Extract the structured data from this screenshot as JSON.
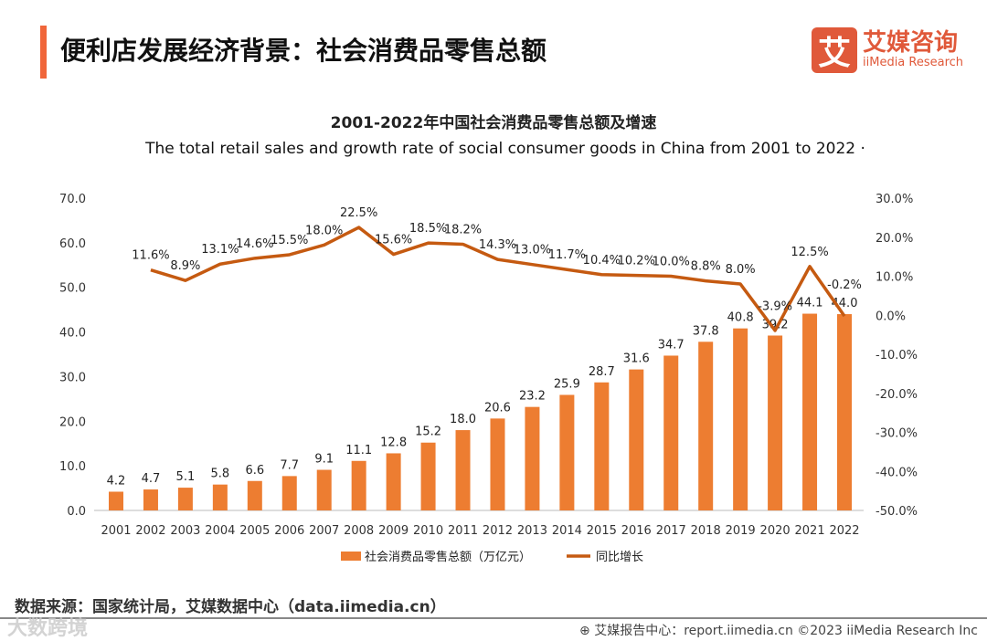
{
  "header": {
    "title": "便利店发展经济背景：社会消费品零售总额",
    "logo_glyph": "艾",
    "logo_cn": "艾媒咨询",
    "logo_en": "iiMedia Research"
  },
  "chart_data": {
    "type": "bar+line",
    "title": "2001-2022年中国社会消费品零售总额及增速",
    "subtitle": "The total retail sales and growth rate of social consumer goods  in China from 2001 to 2022 ·",
    "categories": [
      "2001",
      "2002",
      "2003",
      "2004",
      "2005",
      "2006",
      "2007",
      "2008",
      "2009",
      "2010",
      "2011",
      "2012",
      "2013",
      "2014",
      "2015",
      "2016",
      "2017",
      "2018",
      "2019",
      "2020",
      "2021",
      "2022"
    ],
    "series": [
      {
        "name": "社会消费品零售总额（万亿元）",
        "type": "bar",
        "axis": "left",
        "color": "#ed7d31",
        "values": [
          4.2,
          4.7,
          5.1,
          5.8,
          6.6,
          7.7,
          9.1,
          11.1,
          12.8,
          15.2,
          18.0,
          20.6,
          23.2,
          25.9,
          28.7,
          31.6,
          34.7,
          37.8,
          40.8,
          39.2,
          44.1,
          44.0
        ]
      },
      {
        "name": "同比增长",
        "type": "line",
        "axis": "right",
        "color": "#c55a11",
        "values": [
          null,
          11.6,
          8.9,
          13.1,
          14.6,
          15.5,
          18.0,
          22.5,
          15.6,
          18.5,
          18.2,
          14.3,
          13.0,
          11.7,
          10.4,
          10.2,
          10.0,
          8.8,
          8.0,
          -3.9,
          12.5,
          -0.2
        ]
      }
    ],
    "ylim_left": [
      0,
      70
    ],
    "yticks_left": [
      "0.0",
      "10.0",
      "20.0",
      "30.0",
      "40.0",
      "50.0",
      "60.0",
      "70.0"
    ],
    "ylim_right": [
      -50,
      30
    ],
    "yticks_right": [
      "-50.0%",
      "-40.0%",
      "-30.0%",
      "-20.0%",
      "-10.0%",
      "0.0%",
      "10.0%",
      "20.0%",
      "30.0%"
    ],
    "legend": "bottom",
    "grid": false
  },
  "footer": {
    "source": "数据来源：国家统计局，艾媒数据中心（data.iimedia.cn）",
    "report": "⊕ 艾媒报告中心：report.iimedia.cn   ©2023  iiMedia Research  Inc",
    "watermark": "大数跨境"
  }
}
